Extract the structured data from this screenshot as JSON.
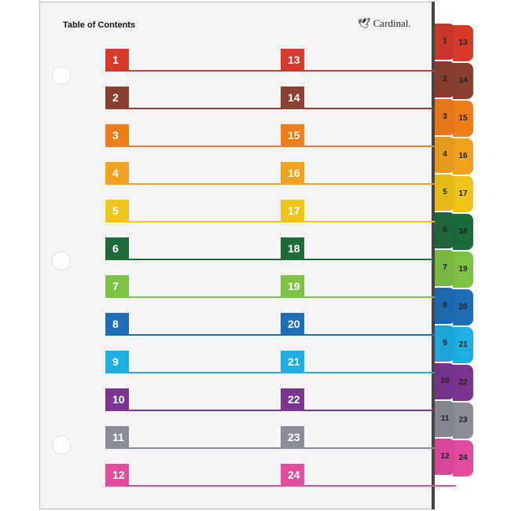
{
  "title": "Table of Contents",
  "brand": "Cardinal.",
  "entries": [
    {
      "left": "1",
      "right": "13",
      "color": "#d63a2a"
    },
    {
      "left": "2",
      "right": "14",
      "color": "#8b3f2e"
    },
    {
      "left": "3",
      "right": "15",
      "color": "#ef7d1a"
    },
    {
      "left": "4",
      "right": "16",
      "color": "#f2a21d"
    },
    {
      "left": "5",
      "right": "17",
      "color": "#f0c419"
    },
    {
      "left": "6",
      "right": "18",
      "color": "#1e6b3a"
    },
    {
      "left": "7",
      "right": "19",
      "color": "#7dc243"
    },
    {
      "left": "8",
      "right": "20",
      "color": "#1f6db5"
    },
    {
      "left": "9",
      "right": "21",
      "color": "#1eaee3"
    },
    {
      "left": "10",
      "right": "22",
      "color": "#7b3590"
    },
    {
      "left": "11",
      "right": "23",
      "color": "#8a8d96"
    },
    {
      "left": "12",
      "right": "24",
      "color": "#e24c9c"
    }
  ]
}
